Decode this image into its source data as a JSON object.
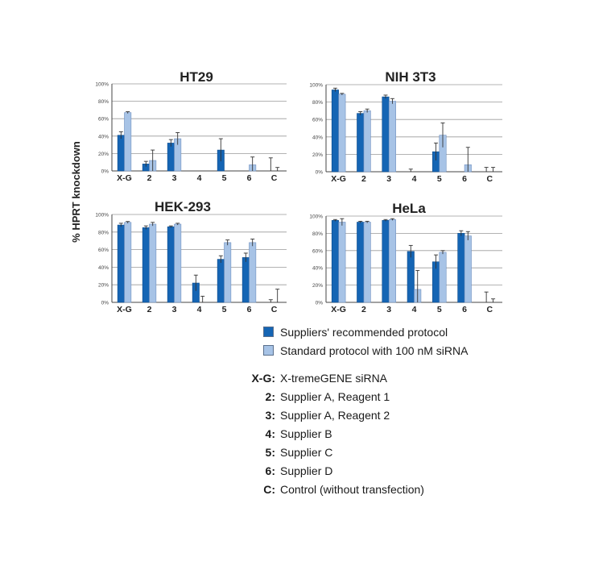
{
  "figure": {
    "ylabel": "% HPRT knockdown",
    "colors": {
      "series_1": "#1565b4",
      "series_2": "#a7c3e6",
      "grid": "#9a9a9a",
      "axis": "#444444"
    }
  },
  "chart_data": [
    {
      "type": "bar",
      "title": "HT29",
      "categories": [
        "X-G",
        "2",
        "3",
        "4",
        "5",
        "6",
        "C"
      ],
      "ylim": [
        0,
        100
      ],
      "yticks": [
        "0%",
        "20%",
        "40%",
        "60%",
        "80%",
        "100%"
      ],
      "series": [
        {
          "name": "Suppliers' recommended protocol",
          "values": [
            41,
            8,
            32,
            0,
            24,
            0,
            0
          ],
          "errors": [
            4,
            3,
            4,
            0,
            13,
            0,
            15
          ]
        },
        {
          "name": "Standard protocol with 100 nM siRNA",
          "values": [
            67,
            12,
            37,
            0,
            0,
            7,
            0
          ],
          "errors": [
            1,
            12,
            7,
            0,
            0,
            9,
            4
          ]
        }
      ]
    },
    {
      "type": "bar",
      "title": "NIH 3T3",
      "categories": [
        "X-G",
        "2",
        "3",
        "4",
        "5",
        "6",
        "C"
      ],
      "ylim": [
        0,
        100
      ],
      "yticks": [
        "0%",
        "20%",
        "40%",
        "60%",
        "80%",
        "100%"
      ],
      "series": [
        {
          "name": "Suppliers' recommended protocol",
          "values": [
            94,
            67,
            86,
            0,
            23,
            0,
            0
          ],
          "errors": [
            2,
            2,
            2,
            3,
            10,
            0,
            5
          ]
        },
        {
          "name": "Standard protocol with 100 nM siRNA",
          "values": [
            89,
            70,
            81,
            0,
            42,
            8,
            0
          ],
          "errors": [
            1,
            2,
            3,
            0,
            14,
            20,
            5
          ]
        }
      ]
    },
    {
      "type": "bar",
      "title": "HEK-293",
      "categories": [
        "X-G",
        "2",
        "3",
        "4",
        "5",
        "6",
        "C"
      ],
      "ylim": [
        0,
        100
      ],
      "yticks": [
        "0%",
        "20%",
        "40%",
        "60%",
        "80%",
        "100%"
      ],
      "series": [
        {
          "name": "Suppliers' recommended protocol",
          "values": [
            88,
            85,
            86,
            22,
            49,
            51,
            0
          ],
          "errors": [
            2,
            2,
            1,
            9,
            4,
            5,
            3
          ]
        },
        {
          "name": "Standard protocol with 100 nM siRNA",
          "values": [
            91,
            89,
            89,
            0,
            68,
            68,
            0
          ],
          "errors": [
            1,
            2,
            1,
            7,
            3,
            4,
            15
          ]
        }
      ]
    },
    {
      "type": "bar",
      "title": "HeLa",
      "categories": [
        "X-G",
        "2",
        "3",
        "4",
        "5",
        "6",
        "C"
      ],
      "ylim": [
        0,
        100
      ],
      "yticks": [
        "0%",
        "20%",
        "40%",
        "60%",
        "80%",
        "100%"
      ],
      "series": [
        {
          "name": "Suppliers' recommended protocol",
          "values": [
            95,
            93,
            95,
            59,
            47,
            80,
            0
          ],
          "errors": [
            1,
            1,
            1,
            7,
            8,
            3,
            12
          ]
        },
        {
          "name": "Standard protocol with 100 nM siRNA",
          "values": [
            93,
            93,
            96,
            15,
            58,
            77,
            0
          ],
          "errors": [
            4,
            1,
            1,
            22,
            2,
            5,
            4
          ]
        }
      ]
    }
  ],
  "legend": {
    "items": [
      {
        "label": "Suppliers' recommended protocol",
        "color": "#1565b4"
      },
      {
        "label": "Standard protocol with 100 nM siRNA",
        "color": "#a7c3e6"
      }
    ]
  },
  "abbreviations": [
    {
      "key": "X-G:",
      "text": "X-tremeGENE siRNA"
    },
    {
      "key": "2:",
      "text": "Supplier A, Reagent 1"
    },
    {
      "key": "3:",
      "text": "Supplier A, Reagent 2"
    },
    {
      "key": "4:",
      "text": "Supplier B"
    },
    {
      "key": "5:",
      "text": "Supplier C"
    },
    {
      "key": "6:",
      "text": "Supplier D"
    },
    {
      "key": "C:",
      "text": "Control (without transfection)"
    }
  ]
}
